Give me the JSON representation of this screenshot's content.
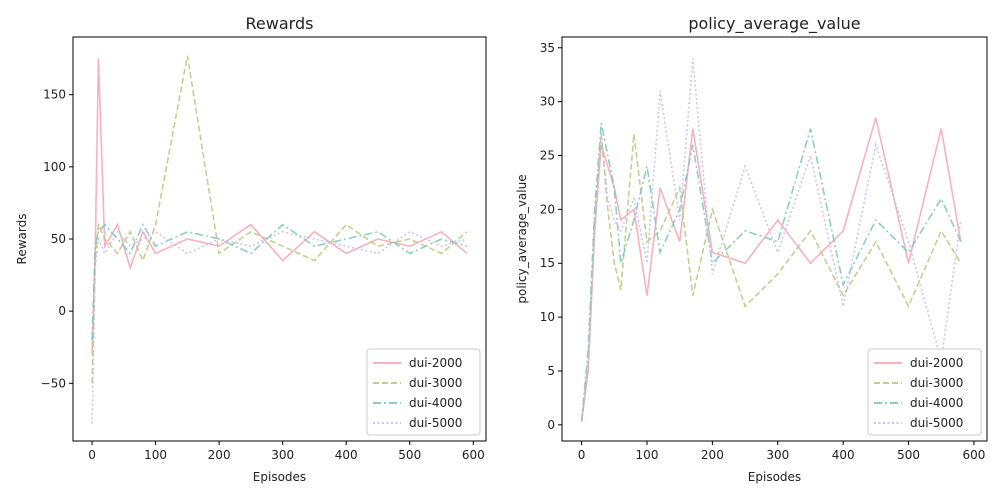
{
  "chart_data": [
    {
      "type": "line",
      "title": "Rewards",
      "xlabel": "Episodes",
      "ylabel": "Rewards",
      "xlim": [
        -30,
        620
      ],
      "ylim": [
        -90,
        190
      ],
      "xticks": [
        0,
        100,
        200,
        300,
        400,
        500,
        600
      ],
      "yticks": [
        -50,
        0,
        50,
        100,
        150
      ],
      "grid": false,
      "legend": "bottom-right",
      "x": [
        0,
        5,
        10,
        20,
        40,
        60,
        80,
        100,
        150,
        200,
        250,
        300,
        350,
        400,
        450,
        500,
        550,
        590
      ],
      "series": [
        {
          "name": "dui-2000",
          "color": "#f4a5b4",
          "dash": "solid",
          "values": [
            -30,
            40,
            175,
            45,
            60,
            30,
            55,
            40,
            50,
            45,
            60,
            35,
            55,
            40,
            50,
            45,
            55,
            40
          ]
        },
        {
          "name": "dui-3000",
          "color": "#b9c97a",
          "dash": "dashed",
          "values": [
            -50,
            35,
            60,
            50,
            40,
            55,
            35,
            60,
            177,
            40,
            55,
            45,
            35,
            60,
            45,
            50,
            40,
            55
          ]
        },
        {
          "name": "dui-4000",
          "color": "#7cc6bb",
          "dash": "dashdot",
          "values": [
            -20,
            45,
            55,
            60,
            50,
            40,
            60,
            45,
            55,
            50,
            40,
            60,
            45,
            50,
            55,
            40,
            50,
            45
          ]
        },
        {
          "name": "dui-5000",
          "color": "#c7b9ef",
          "dash": "dotted",
          "values": [
            -78,
            30,
            50,
            40,
            55,
            45,
            50,
            55,
            40,
            50,
            45,
            55,
            50,
            45,
            40,
            55,
            45,
            50
          ]
        }
      ]
    },
    {
      "type": "line",
      "title": "policy_average_value",
      "xlabel": "Episodes",
      "ylabel": "policy_average_value",
      "xlim": [
        -30,
        620
      ],
      "ylim": [
        -1.5,
        36
      ],
      "xticks": [
        0,
        100,
        200,
        300,
        400,
        500,
        600
      ],
      "yticks": [
        0,
        5,
        10,
        15,
        20,
        25,
        30,
        35
      ],
      "grid": false,
      "legend": "bottom-right",
      "x": [
        0,
        10,
        20,
        30,
        40,
        50,
        60,
        80,
        100,
        120,
        150,
        170,
        200,
        250,
        300,
        350,
        400,
        450,
        500,
        550,
        580
      ],
      "series": [
        {
          "name": "dui-2000",
          "color": "#f4a5b4",
          "dash": "solid",
          "values": [
            0.3,
            5,
            18,
            26,
            24,
            22,
            19,
            20,
            12,
            22,
            17,
            27.5,
            16,
            15,
            19,
            15,
            18,
            28.5,
            15,
            27.5,
            17
          ]
        },
        {
          "name": "dui-3000",
          "color": "#b9c97a",
          "dash": "dashed",
          "values": [
            0.3,
            6,
            19,
            27,
            20,
            15,
            12.5,
            27,
            17,
            18,
            22,
            12,
            20,
            11,
            14,
            18,
            12,
            17,
            11,
            18,
            15
          ]
        },
        {
          "name": "dui-4000",
          "color": "#7cc6bb",
          "dash": "dashdot",
          "values": [
            0.3,
            7,
            20,
            28,
            25,
            22,
            15,
            19,
            24,
            16,
            20,
            26,
            15,
            18,
            17,
            27.5,
            13,
            19,
            16,
            21,
            17
          ]
        },
        {
          "name": "dui-5000",
          "color": "#c7b9ef",
          "dash": "dotted",
          "values": [
            0.3,
            6,
            18,
            27,
            21,
            19,
            18,
            21,
            15,
            31,
            19,
            34,
            14,
            24,
            16,
            25,
            11,
            26,
            17,
            6,
            19
          ]
        }
      ]
    }
  ]
}
